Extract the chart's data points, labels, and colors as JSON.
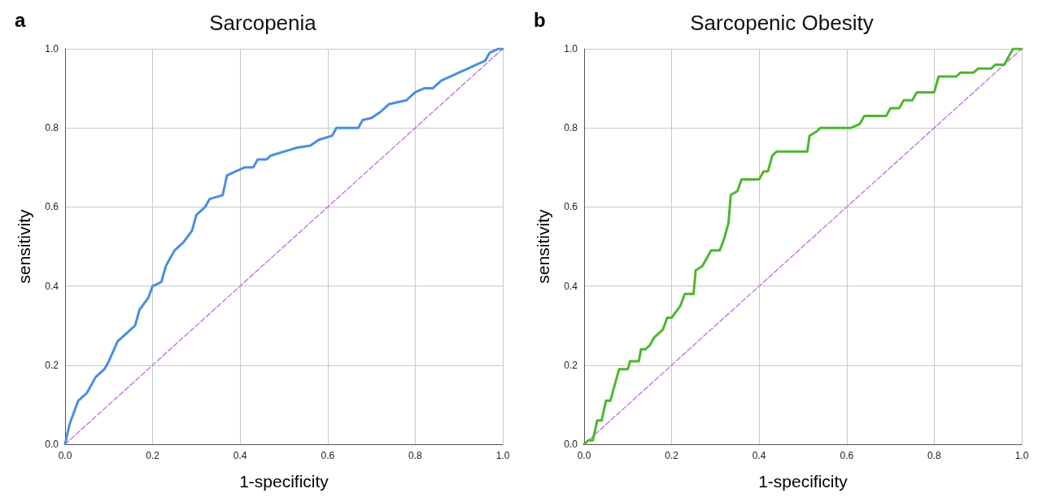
{
  "chart_data": [
    {
      "type": "line",
      "title": "Sarcopenia",
      "xlabel": "1-specificity",
      "ylabel": "sensitivity",
      "annotations": [
        "a"
      ],
      "xlim": [
        0,
        1
      ],
      "ylim": [
        0,
        1
      ],
      "xticks": [
        {
          "value": 0,
          "label": "0.0"
        },
        {
          "value": 0.2,
          "label": "0.2"
        },
        {
          "value": 0.4,
          "label": "0.4"
        },
        {
          "value": 0.6,
          "label": "0.6"
        },
        {
          "value": 0.8,
          "label": "0.8"
        },
        {
          "value": 1,
          "label": "1.0"
        }
      ],
      "yticks": [
        {
          "value": 0,
          "label": "0.0"
        },
        {
          "value": 0.2,
          "label": "0.2"
        },
        {
          "value": 0.4,
          "label": "0.4"
        },
        {
          "value": 0.6,
          "label": "0.6"
        },
        {
          "value": 0.8,
          "label": "0.8"
        },
        {
          "value": 1,
          "label": "1.0"
        }
      ],
      "grid": true,
      "marker": "none",
      "series": [
        {
          "color": "#4a8fe2",
          "line_style": "solid",
          "x": [
            0,
            0.01,
            0.02,
            0.03,
            0.05,
            0.07,
            0.09,
            0.1,
            0.12,
            0.14,
            0.16,
            0.17,
            0.19,
            0.2,
            0.22,
            0.23,
            0.24,
            0.25,
            0.27,
            0.29,
            0.3,
            0.32,
            0.33,
            0.36,
            0.37,
            0.39,
            0.41,
            0.43,
            0.44,
            0.46,
            0.47,
            0.5,
            0.53,
            0.56,
            0.58,
            0.61,
            0.62,
            0.67,
            0.68,
            0.7,
            0.72,
            0.74,
            0.78,
            0.8,
            0.82,
            0.84,
            0.86,
            0.88,
            0.9,
            0.92,
            0.94,
            0.96,
            0.97,
            0.99,
            1
          ],
          "values": [
            0,
            0.05,
            0.08,
            0.11,
            0.13,
            0.17,
            0.19,
            0.21,
            0.26,
            0.28,
            0.3,
            0.34,
            0.37,
            0.4,
            0.41,
            0.45,
            0.47,
            0.49,
            0.51,
            0.54,
            0.58,
            0.6,
            0.62,
            0.63,
            0.68,
            0.69,
            0.7,
            0.7,
            0.72,
            0.72,
            0.73,
            0.74,
            0.75,
            0.755,
            0.77,
            0.78,
            0.8,
            0.8,
            0.82,
            0.825,
            0.84,
            0.86,
            0.87,
            0.89,
            0.9,
            0.9,
            0.92,
            0.93,
            0.94,
            0.95,
            0.96,
            0.97,
            0.99,
            1,
            1
          ]
        },
        {
          "color": "#cc7be8",
          "line_style": "dashed",
          "x": [
            0,
            1
          ],
          "values": [
            0,
            1
          ]
        }
      ]
    },
    {
      "type": "line",
      "title": "Sarcopenic Obesity",
      "xlabel": "1-specificity",
      "ylabel": "sensitivity",
      "annotations": [
        "b"
      ],
      "xlim": [
        0,
        1
      ],
      "ylim": [
        0,
        1
      ],
      "xticks": [
        {
          "value": 0,
          "label": "0.0"
        },
        {
          "value": 0.2,
          "label": "0.2"
        },
        {
          "value": 0.4,
          "label": "0.4"
        },
        {
          "value": 0.6,
          "label": "0.6"
        },
        {
          "value": 0.8,
          "label": "0.8"
        },
        {
          "value": 1,
          "label": "1.0"
        }
      ],
      "yticks": [
        {
          "value": 0,
          "label": "0.0"
        },
        {
          "value": 0.2,
          "label": "0.2"
        },
        {
          "value": 0.4,
          "label": "0.4"
        },
        {
          "value": 0.6,
          "label": "0.6"
        },
        {
          "value": 0.8,
          "label": "0.8"
        },
        {
          "value": 1,
          "label": "1.0"
        }
      ],
      "grid": true,
      "marker": "none",
      "series": [
        {
          "color": "#4cb82c",
          "line_style": "solid",
          "x": [
            0,
            0.01,
            0.02,
            0.03,
            0.04,
            0.05,
            0.06,
            0.07,
            0.08,
            0.1,
            0.105,
            0.125,
            0.13,
            0.14,
            0.15,
            0.16,
            0.17,
            0.18,
            0.19,
            0.2,
            0.22,
            0.23,
            0.25,
            0.255,
            0.27,
            0.28,
            0.29,
            0.31,
            0.32,
            0.33,
            0.335,
            0.35,
            0.36,
            0.4,
            0.41,
            0.42,
            0.43,
            0.44,
            0.51,
            0.515,
            0.53,
            0.54,
            0.61,
            0.63,
            0.64,
            0.69,
            0.7,
            0.72,
            0.73,
            0.75,
            0.76,
            0.8,
            0.81,
            0.85,
            0.86,
            0.89,
            0.9,
            0.93,
            0.94,
            0.96,
            0.97,
            0.98,
            1
          ],
          "values": [
            0,
            0.01,
            0.01,
            0.06,
            0.06,
            0.11,
            0.11,
            0.15,
            0.19,
            0.19,
            0.21,
            0.21,
            0.24,
            0.24,
            0.25,
            0.27,
            0.28,
            0.29,
            0.32,
            0.32,
            0.35,
            0.38,
            0.38,
            0.44,
            0.45,
            0.47,
            0.49,
            0.49,
            0.52,
            0.56,
            0.63,
            0.64,
            0.67,
            0.67,
            0.69,
            0.69,
            0.73,
            0.74,
            0.74,
            0.78,
            0.79,
            0.8,
            0.8,
            0.81,
            0.83,
            0.83,
            0.85,
            0.85,
            0.87,
            0.87,
            0.89,
            0.89,
            0.93,
            0.93,
            0.94,
            0.94,
            0.95,
            0.95,
            0.96,
            0.96,
            0.98,
            1,
            1
          ]
        },
        {
          "color": "#cc7be8",
          "line_style": "dashed",
          "x": [
            0,
            1
          ],
          "values": [
            0,
            1
          ]
        }
      ]
    }
  ]
}
